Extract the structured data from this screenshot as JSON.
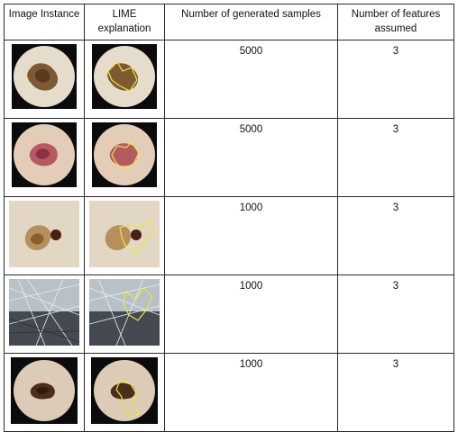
{
  "table": {
    "headers": [
      "Image Instance",
      "LIME explanation",
      "Number of generated samples",
      "Number of features assumed"
    ],
    "rows": [
      {
        "samples": "5000",
        "features": "3",
        "image": "dermoscopy-lesion-brown-icon",
        "lime": "lime-overlay-yellow-contour-icon"
      },
      {
        "samples": "5000",
        "features": "3",
        "image": "dermoscopy-lesion-pink-icon",
        "lime": "lime-overlay-yellow-contour-icon"
      },
      {
        "samples": "1000",
        "features": "3",
        "image": "skin-lesion-closeup-icon",
        "lime": "lime-overlay-yellow-contour-icon"
      },
      {
        "samples": "1000",
        "features": "3",
        "image": "hairy-skin-lesion-icon",
        "lime": "lime-overlay-yellow-contour-icon"
      },
      {
        "samples": "1000",
        "features": "3",
        "image": "dermoscopy-lesion-dark-icon",
        "lime": "lime-overlay-yellow-contour-icon"
      }
    ]
  },
  "colors": {
    "border": "#2a2a2a",
    "contour": "#e8e83a",
    "skin_light": "#e9dcc8",
    "lesion_brown": "#7a4a22",
    "lesion_pink": "#b04a5a"
  }
}
